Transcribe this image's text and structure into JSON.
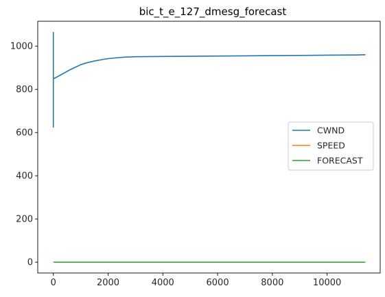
{
  "chart_data": {
    "type": "line",
    "title": "bic_t_e_127_dmesg_forecast",
    "xlabel": "",
    "ylabel": "",
    "xlim": [
      -570,
      11940
    ],
    "ylim": [
      -50,
      1115
    ],
    "xticks": [
      0,
      2000,
      4000,
      6000,
      8000,
      10000
    ],
    "yticks": [
      0,
      200,
      400,
      600,
      800,
      1000
    ],
    "legend": {
      "position": "center-right"
    },
    "grid": false,
    "series": [
      {
        "name": "CWND",
        "color": "#1f77b4",
        "x": [
          0,
          0,
          0,
          10,
          50,
          100,
          200,
          300,
          400,
          500,
          600,
          800,
          1000,
          1200,
          1500,
          1800,
          2000,
          2300,
          2600,
          3000,
          4000,
          5000,
          6000,
          7000,
          8000,
          9000,
          10000,
          11000,
          11400
        ],
        "y": [
          1065,
          625,
          850,
          850,
          852,
          855,
          862,
          869,
          876,
          883,
          890,
          902,
          914,
          922,
          931,
          938,
          942,
          946,
          949,
          951,
          952,
          953,
          954,
          955,
          956,
          957,
          958,
          959,
          960
        ]
      },
      {
        "name": "SPEED",
        "color": "#ff7f0e",
        "x": [
          0,
          11400
        ],
        "y": [
          0,
          0
        ]
      },
      {
        "name": "FORECAST",
        "color": "#2ca02c",
        "x": [
          0,
          11400
        ],
        "y": [
          0,
          0
        ]
      }
    ]
  }
}
